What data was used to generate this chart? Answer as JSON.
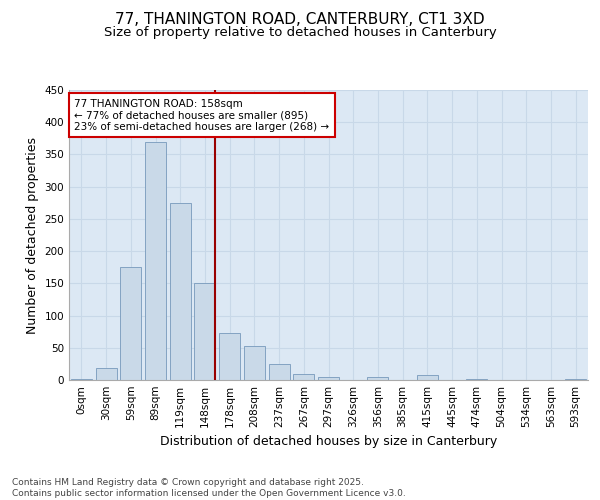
{
  "title_line1": "77, THANINGTON ROAD, CANTERBURY, CT1 3XD",
  "title_line2": "Size of property relative to detached houses in Canterbury",
  "xlabel": "Distribution of detached houses by size in Canterbury",
  "ylabel": "Number of detached properties",
  "bar_labels": [
    "0sqm",
    "30sqm",
    "59sqm",
    "89sqm",
    "119sqm",
    "148sqm",
    "178sqm",
    "208sqm",
    "237sqm",
    "267sqm",
    "297sqm",
    "326sqm",
    "356sqm",
    "385sqm",
    "415sqm",
    "445sqm",
    "474sqm",
    "504sqm",
    "534sqm",
    "563sqm",
    "593sqm"
  ],
  "bar_values": [
    1,
    18,
    175,
    370,
    275,
    150,
    73,
    53,
    25,
    10,
    5,
    0,
    5,
    0,
    7,
    0,
    1,
    0,
    0,
    0,
    2
  ],
  "bar_color": "#c9d9e8",
  "bar_edge_color": "#7799bb",
  "grid_color": "#c8d8e8",
  "bg_color": "#dce8f4",
  "vline_index": 5,
  "vline_color": "#990000",
  "annotation_text": "77 THANINGTON ROAD: 158sqm\n← 77% of detached houses are smaller (895)\n23% of semi-detached houses are larger (268) →",
  "annotation_box_color": "#cc0000",
  "ylim": [
    0,
    450
  ],
  "yticks": [
    0,
    50,
    100,
    150,
    200,
    250,
    300,
    350,
    400,
    450
  ],
  "footnote": "Contains HM Land Registry data © Crown copyright and database right 2025.\nContains public sector information licensed under the Open Government Licence v3.0.",
  "title_fontsize": 11,
  "subtitle_fontsize": 9.5,
  "axis_label_fontsize": 9,
  "tick_fontsize": 7.5,
  "annotation_fontsize": 7.5,
  "footnote_fontsize": 6.5
}
